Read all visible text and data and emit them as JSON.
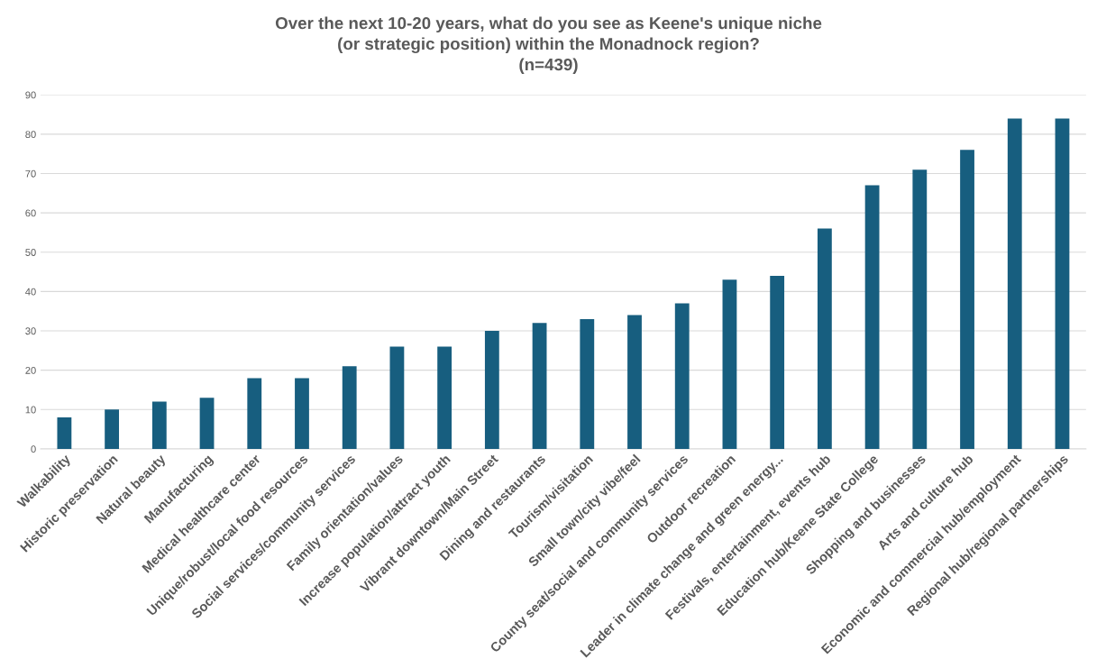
{
  "chart_data": {
    "type": "bar",
    "title": "Over the next 10-20 years, what do you see as Keene's unique niche\n(or strategic position) within the Monadnock region?\n(n=439)",
    "categories": [
      "Walkability",
      "Historic preservation",
      "Natural beauty",
      "Manufacturing",
      "Medical healthcare center",
      "Unique/robust/local food resources",
      "Social services/community services",
      "Family orientation/values",
      "Increase population/attract youth",
      "Vibrant downtown/Main Street",
      "Dining and restaurants",
      "Tourism/visitation",
      "Small town/city vibe/feel",
      "County seat/social and community services",
      "Outdoor recreation",
      "Leader in climate change and green energy...",
      "Festivals, entertainment, events hub",
      "Education hub/Keene State College",
      "Shopping and businesses",
      "Arts and culture hub",
      "Economic and commercial hub/employment",
      "Regional hub/regional partnerships"
    ],
    "values": [
      8,
      10,
      12,
      13,
      18,
      18,
      21,
      26,
      26,
      30,
      32,
      33,
      34,
      37,
      43,
      44,
      56,
      67,
      71,
      76,
      84,
      84
    ],
    "color": "#175e7f",
    "ylim": [
      0,
      90
    ],
    "yticks": [
      0,
      10,
      20,
      30,
      40,
      50,
      60,
      70,
      80,
      90
    ],
    "grid": "y",
    "legend": false
  }
}
